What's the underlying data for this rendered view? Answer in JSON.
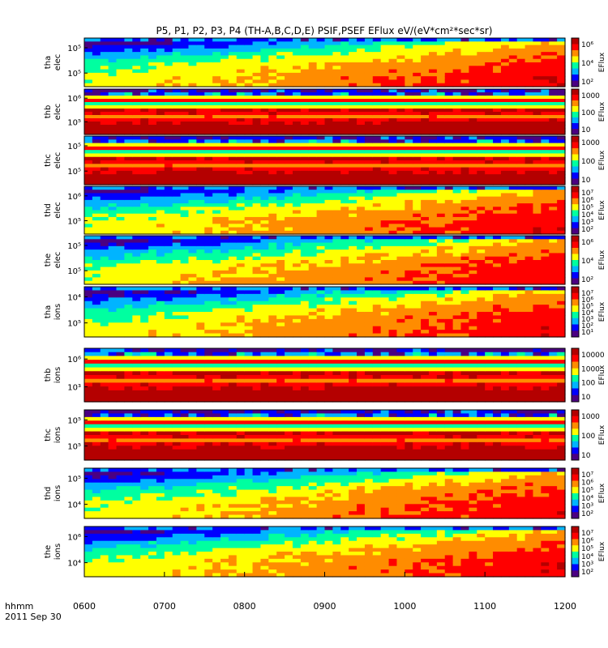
{
  "chart_data": {
    "type": "heatmap",
    "title": "P5, P1, P2, P3, P4 (TH-A,B,C,D,E) PSIF,PSEF EFlux eV/(eV*cm²*sec*sr)",
    "xlabel_line1": "hhmm",
    "xlabel_line2": "2011 Sep 30",
    "x_ticks": [
      "0600",
      "0700",
      "0800",
      "0900",
      "1000",
      "1100",
      "1200"
    ],
    "xlim": [
      "0600",
      "1200"
    ],
    "y_scale": "log",
    "colormap": [
      "#4b0082",
      "#0000ff",
      "#00b4ff",
      "#00ffa0",
      "#ffff00",
      "#ff8c00",
      "#ff0000",
      "#b40000"
    ],
    "panels": [
      {
        "label_line1": "tha",
        "label_line2": "elec",
        "y_ticks": [
          "10⁵",
          "10⁵"
        ],
        "cbar_ticks": [
          "10⁶",
          "10⁴",
          "10²"
        ],
        "cbar_label": "EFlux",
        "pattern": "spectrum"
      },
      {
        "label_line1": "thb",
        "label_line2": "elec",
        "y_ticks": [
          "10⁶",
          "10⁵"
        ],
        "cbar_ticks": [
          "1000",
          "100",
          "10"
        ],
        "cbar_label": "EFlux",
        "pattern": "banded"
      },
      {
        "label_line1": "thc",
        "label_line2": "elec",
        "y_ticks": [
          "10⁵",
          "10⁵"
        ],
        "cbar_ticks": [
          "1000",
          "100",
          "10"
        ],
        "cbar_label": "EFlux",
        "pattern": "banded"
      },
      {
        "label_line1": "thd",
        "label_line2": "elec",
        "y_ticks": [
          "10⁶",
          "10⁵"
        ],
        "cbar_ticks": [
          "10⁷",
          "10⁶",
          "10⁵",
          "10⁴",
          "10³",
          "10²"
        ],
        "cbar_label": "EFlux",
        "pattern": "spectrum"
      },
      {
        "label_line1": "the",
        "label_line2": "elec",
        "y_ticks": [
          "10⁵",
          "10⁵"
        ],
        "cbar_ticks": [
          "10⁶",
          "10⁴",
          "10²"
        ],
        "cbar_label": "EFlux",
        "pattern": "spectrum"
      },
      {
        "label_line1": "tha",
        "label_line2": "ions",
        "y_ticks": [
          "10⁴",
          "10⁵"
        ],
        "cbar_ticks": [
          "10⁷",
          "10⁶",
          "10⁵",
          "10⁴",
          "10³",
          "10²",
          "10¹"
        ],
        "cbar_label": "EFlux",
        "pattern": "spectrum"
      },
      {
        "label_line1": "thb",
        "label_line2": "ions",
        "y_ticks": [
          "10⁶",
          "10³"
        ],
        "cbar_ticks": [
          "10000",
          "1000",
          "100",
          "10"
        ],
        "cbar_label": "EFlux",
        "pattern": "banded"
      },
      {
        "label_line1": "thc",
        "label_line2": "ions",
        "y_ticks": [
          "10⁵",
          "10⁵"
        ],
        "cbar_ticks": [
          "1000",
          "100",
          "10"
        ],
        "cbar_label": "EFlux",
        "pattern": "banded"
      },
      {
        "label_line1": "thd",
        "label_line2": "ions",
        "y_ticks": [
          "10⁵",
          "10⁴"
        ],
        "cbar_ticks": [
          "10⁷",
          "10⁶",
          "10⁵",
          "10⁴",
          "10³",
          "10²"
        ],
        "cbar_label": "EFlux",
        "pattern": "spectrum"
      },
      {
        "label_line1": "the",
        "label_line2": "ions",
        "y_ticks": [
          "10⁶",
          "10⁴"
        ],
        "cbar_ticks": [
          "10⁷",
          "10⁶",
          "10⁵",
          "10⁴",
          "10³",
          "10²"
        ],
        "cbar_label": "EFlux",
        "pattern": "spectrum"
      }
    ]
  }
}
